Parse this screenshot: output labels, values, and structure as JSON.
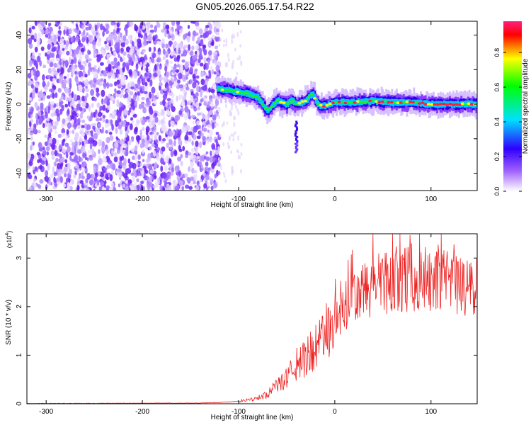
{
  "title": "GN05.2026.065.17.54.R22",
  "chart_data": [
    {
      "type": "heatmap",
      "panel": "spectrogram",
      "xlabel": "Height of straight line (km)",
      "ylabel": "Frequency (Hz)",
      "xlim": [
        -320,
        148
      ],
      "ylim": [
        -50,
        48
      ],
      "x_ticks": [
        -300,
        -200,
        -100,
        0,
        100
      ],
      "y_ticks": [
        -40,
        -20,
        0,
        20,
        40
      ],
      "noise_region_x": [
        -320,
        -122
      ],
      "ridge": {
        "x": [
          -122,
          -110,
          -100,
          -90,
          -80,
          -75,
          -70,
          -65,
          -60,
          -55,
          -50,
          -45,
          -40,
          -35,
          -30,
          -25,
          -22,
          -20,
          -15,
          -10,
          0,
          20,
          40,
          60,
          80,
          100,
          120,
          148
        ],
        "y": [
          9,
          8,
          7,
          6,
          4,
          0,
          -4,
          -1,
          2,
          1,
          0,
          2,
          0,
          1,
          2,
          5,
          6,
          2,
          -1,
          -1,
          1,
          1,
          2,
          1,
          1,
          0,
          0,
          0
        ]
      },
      "tail": {
        "x": -40,
        "y_range": [
          -28,
          -10
        ]
      },
      "colorbar": {
        "label": "Normalized spectral amplitude",
        "ticks": [
          0.0,
          0.2,
          0.4,
          0.6,
          0.8
        ],
        "range": [
          0,
          0.98
        ],
        "colors": [
          "#ffffff",
          "#a060ff",
          "#3000ff",
          "#00e0ff",
          "#00ff00",
          "#ffff00",
          "#ff0000",
          "#ff2080"
        ]
      }
    },
    {
      "type": "line",
      "panel": "snr",
      "xlabel": "Height of straight line (km)",
      "ylabel": "SNR (10 * v/v)",
      "multiplier_label": "(x10",
      "multiplier_exp": "4",
      "multiplier_close": ")",
      "xlim": [
        -320,
        148
      ],
      "ylim": [
        0,
        3.5
      ],
      "x_ticks": [
        -300,
        -200,
        -100,
        0,
        100
      ],
      "y_ticks": [
        0,
        1,
        2,
        3
      ],
      "line_color": "#ee2222",
      "envelope": {
        "x": [
          -320,
          -140,
          -110,
          -90,
          -80,
          -70,
          -60,
          -50,
          -40,
          -30,
          -20,
          -10,
          0,
          10,
          20,
          30,
          40,
          50,
          60,
          70,
          80,
          90,
          100,
          110,
          120,
          130,
          148
        ],
        "y": [
          0.0,
          0.01,
          0.03,
          0.07,
          0.12,
          0.2,
          0.35,
          0.55,
          0.75,
          0.95,
          1.15,
          1.45,
          1.7,
          1.95,
          2.15,
          2.3,
          2.45,
          2.5,
          2.55,
          2.6,
          2.6,
          2.55,
          2.55,
          2.5,
          2.45,
          2.4,
          2.35
        ]
      }
    }
  ]
}
